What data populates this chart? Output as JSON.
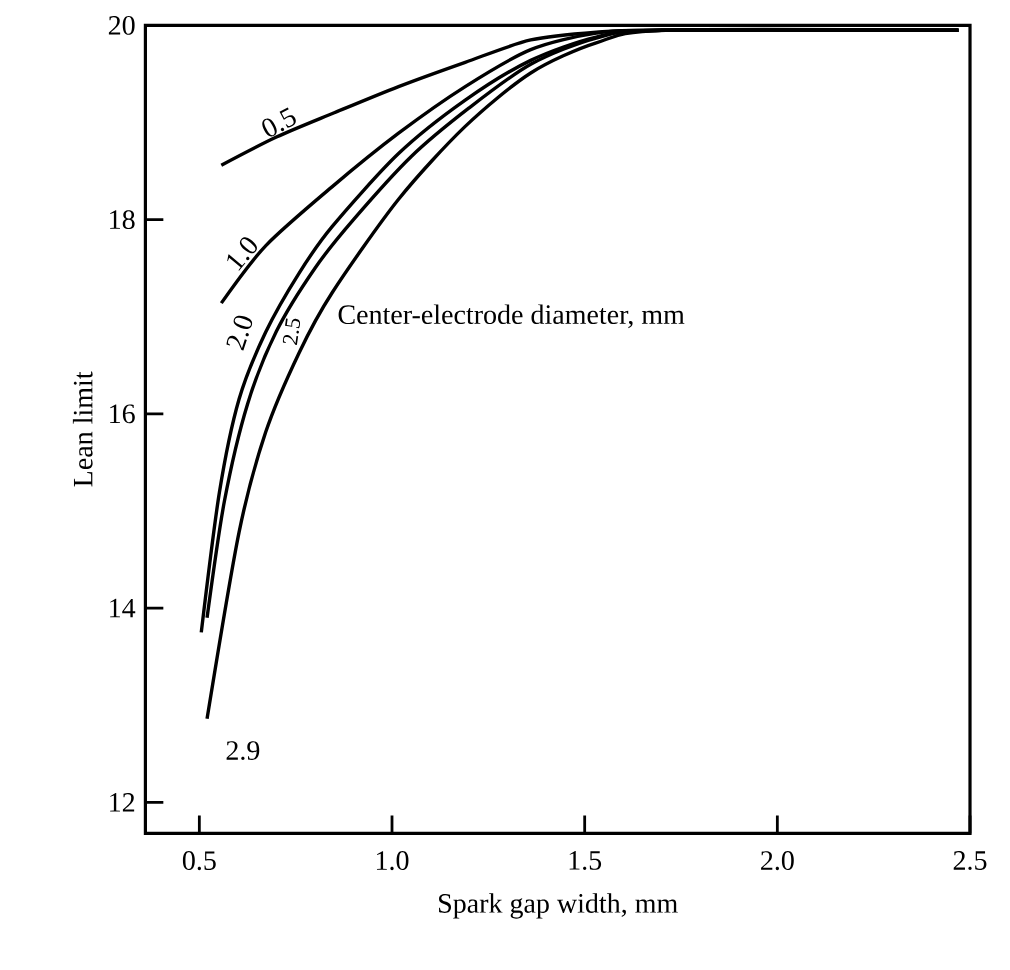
{
  "chart_data": {
    "type": "line",
    "xlabel": "Spark gap width, mm",
    "ylabel": "Lean limit",
    "legend_title": "Center-electrode diameter, mm",
    "xlim": [
      0.36,
      2.5
    ],
    "ylim": [
      11.68,
      20
    ],
    "xticks": [
      0.5,
      {
        "value": 1.0,
        "label": "1.0"
      },
      1.5,
      {
        "value": 2.0,
        "label": "2.0"
      },
      2.5
    ],
    "yticks": [
      12,
      14,
      16,
      18,
      20
    ],
    "grid": false,
    "legend": false,
    "marker": "none",
    "line_style": "solid",
    "series": [
      {
        "name": "0.5",
        "color": "#000000",
        "x": [
          0.557,
          0.7,
          0.85,
          1.017,
          1.19,
          1.36,
          1.53,
          1.7,
          2.47
        ],
        "values": [
          18.56,
          18.85,
          19.1,
          19.37,
          19.62,
          19.85,
          19.93,
          19.95,
          19.95
        ]
      },
      {
        "name": "1.0",
        "color": "#000000",
        "x": [
          0.557,
          0.672,
          0.845,
          1.017,
          1.19,
          1.36,
          1.53,
          1.7,
          2.47
        ],
        "values": [
          17.14,
          17.73,
          18.34,
          18.89,
          19.37,
          19.75,
          19.92,
          19.95,
          19.95
        ]
      },
      {
        "name": "2.0",
        "color": "#000000",
        "x": [
          0.505,
          0.552,
          0.603,
          0.672,
          0.759,
          0.845,
          1.017,
          1.19,
          1.36,
          1.53,
          1.7,
          2.47
        ],
        "values": [
          13.75,
          15.19,
          16.15,
          16.84,
          17.45,
          17.93,
          18.68,
          19.23,
          19.64,
          19.88,
          19.95,
          19.95
        ]
      },
      {
        "name": "2.5",
        "color": "#000000",
        "x": [
          0.52,
          0.565,
          0.625,
          0.7,
          0.8,
          0.9,
          1.05,
          1.2,
          1.36,
          1.53,
          1.7,
          2.47
        ],
        "values": [
          13.9,
          15.1,
          16.1,
          16.85,
          17.5,
          18.0,
          18.65,
          19.15,
          19.6,
          19.87,
          19.95,
          19.95
        ]
      },
      {
        "name": "2.9",
        "color": "#000000",
        "x": [
          0.52,
          0.603,
          0.672,
          0.759,
          0.845,
          1.017,
          1.19,
          1.36,
          1.53,
          1.71,
          2.47
        ],
        "values": [
          12.86,
          14.78,
          15.81,
          16.63,
          17.25,
          18.21,
          18.96,
          19.51,
          19.82,
          19.95,
          19.95
        ]
      }
    ]
  }
}
